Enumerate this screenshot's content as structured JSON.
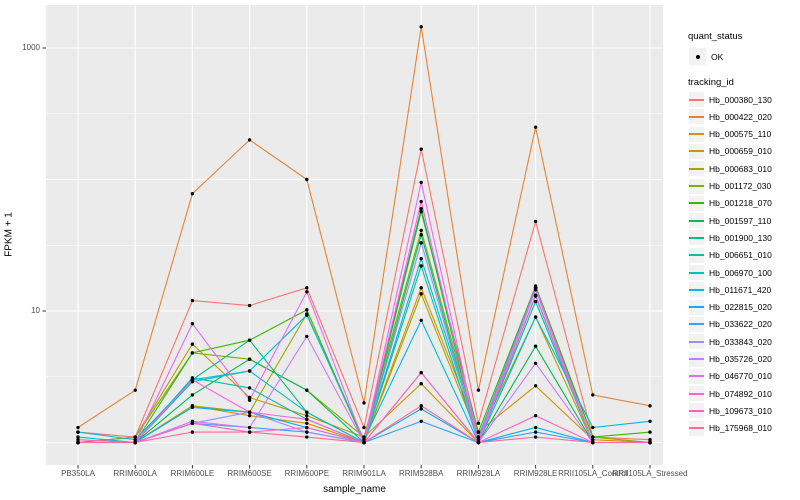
{
  "figure": {
    "panel_background": "#EBEBEB",
    "grid_color": "#FFFFFF",
    "tick_color": "#333333",
    "tick_label_color": "#4D4D4D",
    "point_color": "#000000",
    "legend_key_background": "#F2F2F2"
  },
  "legend": {
    "quant_status_title": "quant_status",
    "quant_status_items": [
      "OK"
    ],
    "tracking_title": "tracking_id"
  },
  "chart_data": {
    "type": "line",
    "title": "",
    "xlabel": "sample_name",
    "ylabel": "FPKM + 1",
    "y_scale": "log10",
    "legend_position": "right",
    "grid": true,
    "y_axis": {
      "tick_values": [
        10,
        1000
      ],
      "tick_labels": [
        "10",
        "1000"
      ],
      "major_gridlines": [
        1,
        10,
        100,
        1000
      ],
      "minor_gridlines": [
        3.162,
        31.62,
        316.2
      ],
      "approx_range": [
        0.7,
        2100
      ]
    },
    "categories": [
      "PB350LA",
      "RRIM600LA",
      "RRIM600LE",
      "RRIM600SE",
      "RRIM600PE",
      "RRIM901LA",
      "RRIM928BA",
      "RRIM928LA",
      "RRIM928LE",
      "RRII105LA_Control",
      "RRII105LA_Stressed"
    ],
    "point_marker": {
      "shape": "point",
      "label": "OK",
      "color": "#000000"
    },
    "series": [
      {
        "name": "Hb_000380_130",
        "color": "#F8766D",
        "values": [
          1.2,
          1.1,
          12,
          11,
          15,
          1.3,
          170,
          1.4,
          48,
          1.1,
          1.05
        ]
      },
      {
        "name": "Hb_000422_020",
        "color": "#EA8331",
        "values": [
          1.3,
          2.5,
          78,
          200,
          100,
          2.0,
          1450,
          2.5,
          250,
          2.3,
          1.9
        ]
      },
      {
        "name": "Hb_000575_110",
        "color": "#D89000",
        "values": [
          1.0,
          1.0,
          1.9,
          1.6,
          1.4,
          1.0,
          15,
          1.2,
          2.7,
          1.05,
          1.0
        ]
      },
      {
        "name": "Hb_000659_010",
        "color": "#C09B00",
        "values": [
          1.0,
          1.1,
          5.6,
          2.2,
          1.6,
          1.1,
          2.8,
          1.0,
          15,
          1.0,
          1.0
        ]
      },
      {
        "name": "Hb_000683_010",
        "color": "#A3A500",
        "values": [
          1.0,
          1.0,
          1.9,
          1.7,
          9.5,
          1.0,
          13.5,
          1.1,
          9.0,
          1.0,
          1.0
        ]
      },
      {
        "name": "Hb_001172_030",
        "color": "#7CAE00",
        "values": [
          1.0,
          1.1,
          4.8,
          4.3,
          2.5,
          1.1,
          41,
          1.1,
          15,
          1.1,
          1.0
        ]
      },
      {
        "name": "Hb_001218_070",
        "color": "#39B600",
        "values": [
          1.0,
          1.0,
          4.8,
          6.0,
          10.2,
          1.0,
          57,
          1.2,
          15.5,
          1.1,
          1.2
        ]
      },
      {
        "name": "Hb_001597_110",
        "color": "#00BB4E",
        "values": [
          1.0,
          1.0,
          2.3,
          4.3,
          2.5,
          1.0,
          60,
          1.0,
          5.4,
          1.0,
          1.0
        ]
      },
      {
        "name": "Hb_001900_130",
        "color": "#00BF7D",
        "values": [
          1.0,
          1.0,
          3.0,
          6.0,
          1.7,
          1.0,
          38,
          1.0,
          13,
          1.0,
          1.0
        ]
      },
      {
        "name": "Hb_006651_010",
        "color": "#00C1A3",
        "values": [
          1.0,
          1.0,
          3.1,
          2.6,
          1.5,
          1.0,
          22,
          1.0,
          11.8,
          1.0,
          1.0
        ]
      },
      {
        "name": "Hb_006970_100",
        "color": "#00BFC4",
        "values": [
          1.1,
          1.0,
          2.9,
          3.5,
          1.7,
          1.0,
          25,
          1.1,
          15,
          1.0,
          1.0
        ]
      },
      {
        "name": "Hb_011671_420",
        "color": "#00BAE0",
        "values": [
          1.2,
          1.05,
          3.0,
          3.5,
          9.3,
          1.05,
          8.5,
          1.0,
          9.0,
          1.3,
          1.45
        ]
      },
      {
        "name": "Hb_022815_020",
        "color": "#00B0F6",
        "values": [
          1.0,
          1.0,
          1.85,
          1.7,
          1.3,
          1.0,
          1.8,
          1.0,
          1.3,
          1.0,
          1.0
        ]
      },
      {
        "name": "Hb_033622_020",
        "color": "#35A2FF",
        "values": [
          1.0,
          1.0,
          1.4,
          1.3,
          1.2,
          1.0,
          1.45,
          1.0,
          1.2,
          1.0,
          1.0
        ]
      },
      {
        "name": "Hb_033843_020",
        "color": "#9590FF",
        "values": [
          1.0,
          1.0,
          1.4,
          1.7,
          1.2,
          1.0,
          33,
          1.0,
          14.5,
          1.0,
          1.0
        ]
      },
      {
        "name": "Hb_035726_020",
        "color": "#C77CFF",
        "values": [
          1.0,
          1.0,
          1.45,
          1.3,
          6.4,
          1.0,
          3.4,
          1.0,
          4.0,
          1.0,
          1.0
        ]
      },
      {
        "name": "Hb_046770_010",
        "color": "#E76BF3",
        "values": [
          1.0,
          1.0,
          8.0,
          2.1,
          14,
          1.0,
          95,
          1.05,
          15,
          1.0,
          1.0
        ]
      },
      {
        "name": "Hb_074892_010",
        "color": "#FA62DB",
        "values": [
          1.0,
          1.0,
          3.0,
          1.7,
          1.5,
          1.0,
          68,
          1.0,
          13.2,
          1.0,
          1.0
        ]
      },
      {
        "name": "Hb_109673_010",
        "color": "#FF62BC",
        "values": [
          1.05,
          1.0,
          1.4,
          1.2,
          1.3,
          1.0,
          3.4,
          1.0,
          1.6,
          1.0,
          1.0
        ]
      },
      {
        "name": "Hb_175968_010",
        "color": "#FF6A98",
        "values": [
          1.0,
          1.0,
          1.2,
          1.2,
          1.1,
          1.0,
          1.9,
          1.0,
          1.1,
          1.0,
          1.0
        ]
      }
    ]
  }
}
